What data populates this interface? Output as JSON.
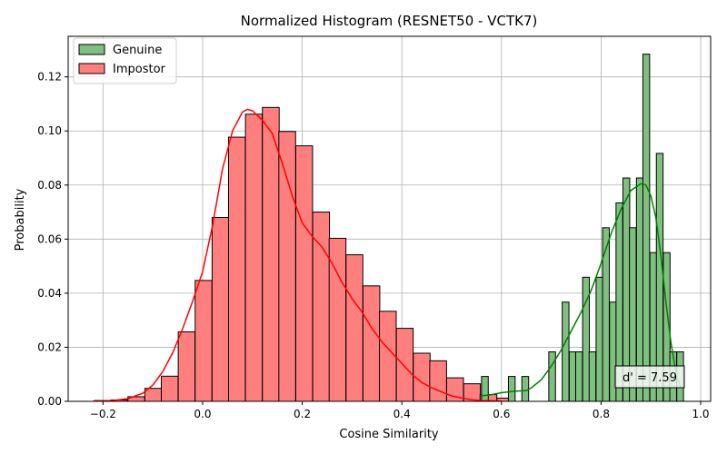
{
  "chart_data": {
    "type": "bar",
    "title": "Normalized Histogram (RESNET50 - VCTK7)",
    "xlabel": "Cosine Similarity",
    "ylabel": "Probability",
    "xlim": [
      -0.27,
      1.02
    ],
    "ylim": [
      0,
      0.135
    ],
    "x_ticks": [
      -0.2,
      0.0,
      0.2,
      0.4,
      0.6,
      0.8,
      1.0
    ],
    "x_tick_labels": [
      "−0.2",
      "0.0",
      "0.2",
      "0.4",
      "0.6",
      "0.8",
      "1.0"
    ],
    "y_ticks": [
      0.0,
      0.02,
      0.04,
      0.06,
      0.08,
      0.1,
      0.12
    ],
    "y_tick_labels": [
      "0.00",
      "0.02",
      "0.04",
      "0.06",
      "0.08",
      "0.10",
      "0.12"
    ],
    "grid": true,
    "legend_position": "top-left",
    "series": [
      {
        "name": "Genuine",
        "color": "#008000",
        "fill": "#7fbf7f",
        "bin_width": 0.0135,
        "bins": [
          [
            0.56,
            0.0092
          ],
          [
            0.614,
            0.0092
          ],
          [
            0.641,
            0.0092
          ],
          [
            0.695,
            0.0183
          ],
          [
            0.722,
            0.0367
          ],
          [
            0.736,
            0.0183
          ],
          [
            0.749,
            0.0183
          ],
          [
            0.763,
            0.0459
          ],
          [
            0.776,
            0.0183
          ],
          [
            0.79,
            0.0459
          ],
          [
            0.803,
            0.0642
          ],
          [
            0.817,
            0.0367
          ],
          [
            0.83,
            0.0734
          ],
          [
            0.844,
            0.0826
          ],
          [
            0.857,
            0.0642
          ],
          [
            0.871,
            0.0826
          ],
          [
            0.884,
            0.1284
          ],
          [
            0.898,
            0.055
          ],
          [
            0.911,
            0.0917
          ],
          [
            0.925,
            0.055
          ],
          [
            0.938,
            0.0183
          ],
          [
            0.952,
            0.0183
          ]
        ],
        "kde": [
          [
            0.56,
            0.002
          ],
          [
            0.58,
            0.0025
          ],
          [
            0.6,
            0.0032
          ],
          [
            0.62,
            0.0036
          ],
          [
            0.63,
            0.0038
          ],
          [
            0.65,
            0.004
          ],
          [
            0.66,
            0.005
          ],
          [
            0.68,
            0.008
          ],
          [
            0.7,
            0.013
          ],
          [
            0.72,
            0.019
          ],
          [
            0.74,
            0.026
          ],
          [
            0.76,
            0.033
          ],
          [
            0.78,
            0.041
          ],
          [
            0.8,
            0.051
          ],
          [
            0.82,
            0.062
          ],
          [
            0.84,
            0.071
          ],
          [
            0.86,
            0.078
          ],
          [
            0.88,
            0.0805
          ],
          [
            0.89,
            0.08
          ],
          [
            0.9,
            0.076
          ],
          [
            0.91,
            0.068
          ],
          [
            0.92,
            0.054
          ],
          [
            0.93,
            0.037
          ],
          [
            0.94,
            0.022
          ],
          [
            0.95,
            0.011
          ],
          [
            0.96,
            0.005
          ]
        ]
      },
      {
        "name": "Impostor",
        "color": "#ff0000",
        "fill": "#ff7f7f",
        "bin_width": 0.0337,
        "bins": [
          [
            -0.217,
            0.0003
          ],
          [
            -0.184,
            0.0005
          ],
          [
            -0.15,
            0.0017
          ],
          [
            -0.116,
            0.0048
          ],
          [
            -0.083,
            0.0093
          ],
          [
            -0.049,
            0.0257
          ],
          [
            -0.015,
            0.0447
          ],
          [
            0.019,
            0.068
          ],
          [
            0.052,
            0.0977
          ],
          [
            0.086,
            0.1062
          ],
          [
            0.12,
            0.1087
          ],
          [
            0.153,
            0.0998
          ],
          [
            0.187,
            0.0945
          ],
          [
            0.221,
            0.07
          ],
          [
            0.254,
            0.0603
          ],
          [
            0.288,
            0.0542
          ],
          [
            0.322,
            0.0427
          ],
          [
            0.355,
            0.0333
          ],
          [
            0.389,
            0.027
          ],
          [
            0.423,
            0.0178
          ],
          [
            0.456,
            0.015
          ],
          [
            0.49,
            0.0087
          ],
          [
            0.524,
            0.0065
          ],
          [
            0.557,
            0.0025
          ],
          [
            0.591,
            0.0012
          ]
        ],
        "kde": [
          [
            -0.22,
            0.0001
          ],
          [
            -0.18,
            0.0003
          ],
          [
            -0.15,
            0.001
          ],
          [
            -0.12,
            0.003
          ],
          [
            -0.1,
            0.006
          ],
          [
            -0.08,
            0.011
          ],
          [
            -0.06,
            0.018
          ],
          [
            -0.04,
            0.027
          ],
          [
            -0.02,
            0.037
          ],
          [
            0.0,
            0.048
          ],
          [
            0.02,
            0.065
          ],
          [
            0.04,
            0.086
          ],
          [
            0.06,
            0.1
          ],
          [
            0.08,
            0.107
          ],
          [
            0.09,
            0.108
          ],
          [
            0.1,
            0.1075
          ],
          [
            0.12,
            0.104
          ],
          [
            0.14,
            0.099
          ],
          [
            0.16,
            0.088
          ],
          [
            0.18,
            0.076
          ],
          [
            0.2,
            0.066
          ],
          [
            0.22,
            0.061
          ],
          [
            0.24,
            0.057
          ],
          [
            0.26,
            0.051
          ],
          [
            0.28,
            0.044
          ],
          [
            0.3,
            0.038
          ],
          [
            0.32,
            0.033
          ],
          [
            0.34,
            0.027
          ],
          [
            0.36,
            0.022
          ],
          [
            0.38,
            0.018
          ],
          [
            0.4,
            0.014
          ],
          [
            0.42,
            0.01
          ],
          [
            0.44,
            0.007
          ],
          [
            0.46,
            0.005
          ],
          [
            0.48,
            0.0035
          ],
          [
            0.5,
            0.002
          ],
          [
            0.52,
            0.0012
          ],
          [
            0.54,
            0.0006
          ],
          [
            0.56,
            0.0003
          ],
          [
            0.58,
            0.0002
          ],
          [
            0.6,
            0.0001
          ]
        ]
      }
    ],
    "annotation": {
      "text": "d' = 7.59",
      "position": "bottom-right"
    }
  }
}
